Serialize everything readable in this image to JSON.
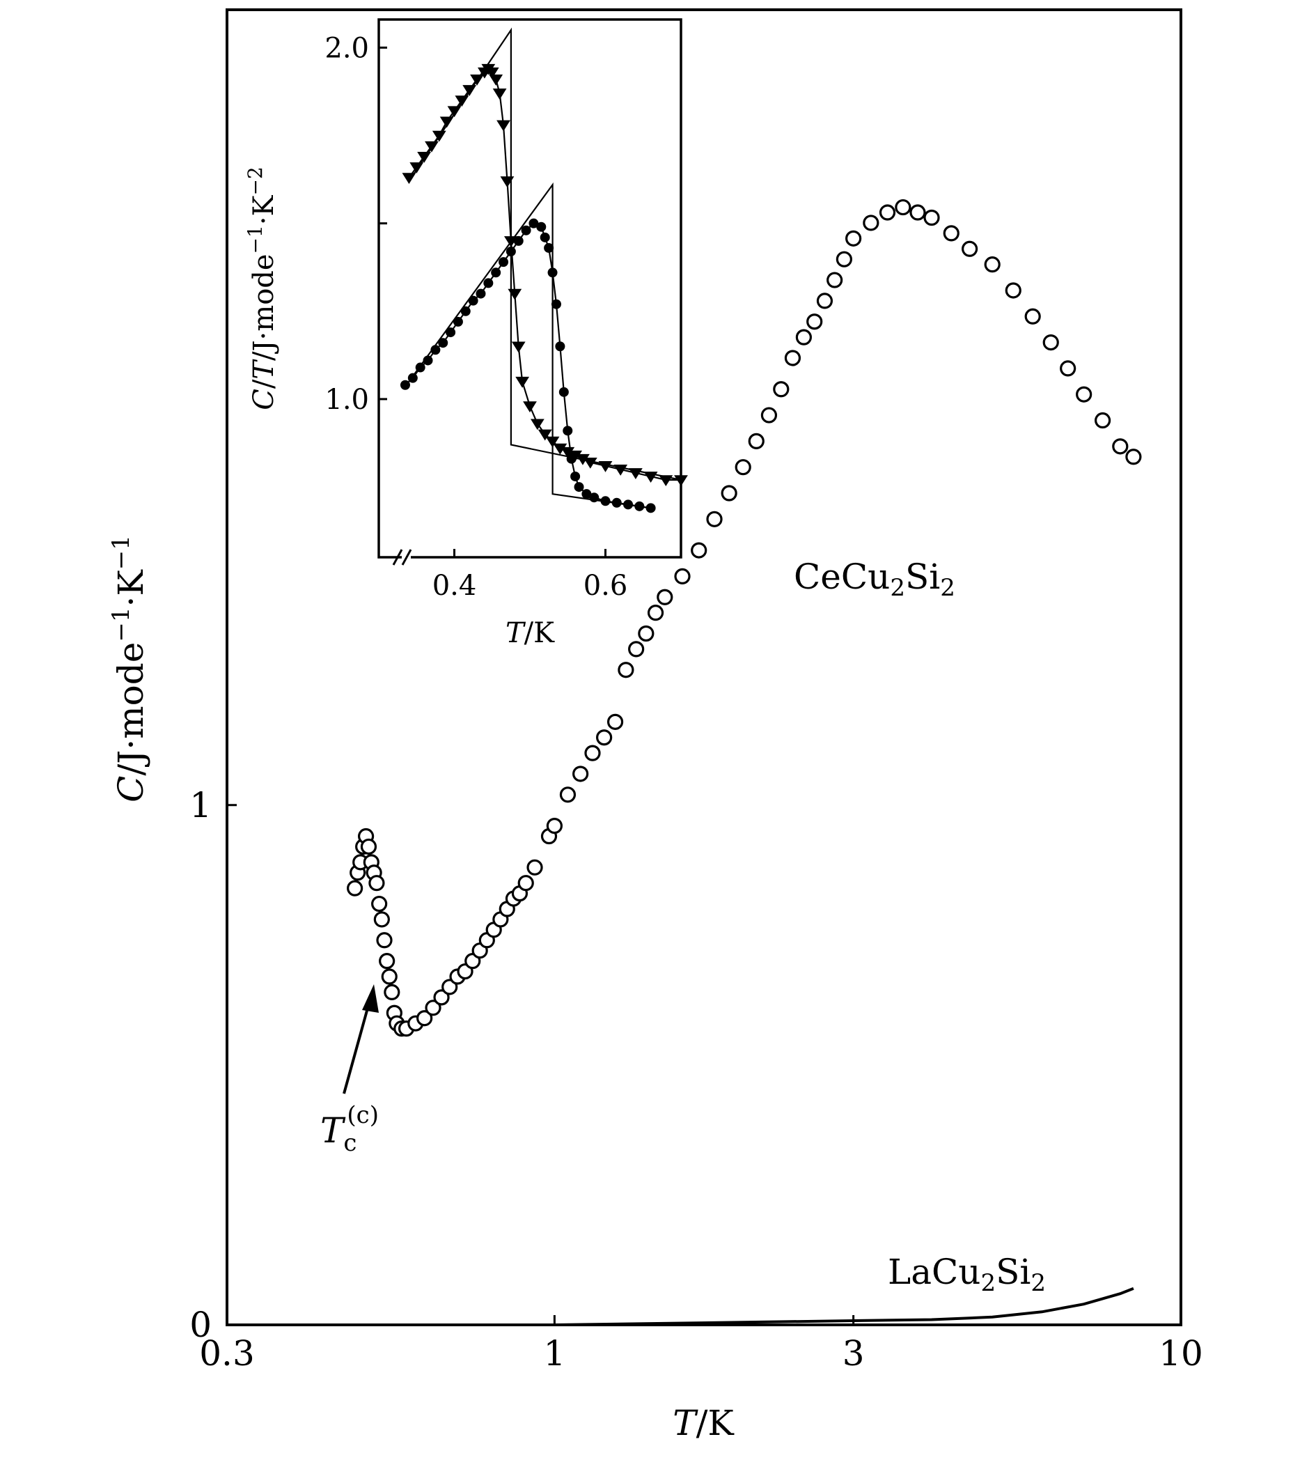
{
  "chart_data": [
    {
      "type": "scatter",
      "xscale": "log",
      "xlim": [
        0.3,
        10
      ],
      "ylim": [
        0,
        2.53
      ],
      "xlabel": {
        "italic": "T",
        "rest": "/K"
      },
      "ylabel": {
        "italic": "C",
        "rest": "/J·mode",
        "sup1": "−1",
        "mid": "·K",
        "sup2": "−1"
      },
      "xticks": [
        {
          "value": 0.3,
          "label": "0.3"
        },
        {
          "value": 1,
          "label": "1"
        },
        {
          "value": 3,
          "label": "3"
        },
        {
          "value": 10,
          "label": "10"
        }
      ],
      "yticks": [
        {
          "value": 0,
          "label": "0"
        },
        {
          "value": 1,
          "label": "1"
        }
      ],
      "series": [
        {
          "name": "CeCu2Si2",
          "label_parts": [
            "CeCu",
            "2",
            "Si",
            "2"
          ],
          "marker": "open-circle",
          "points": [
            [
              0.48,
              0.84
            ],
            [
              0.485,
              0.87
            ],
            [
              0.49,
              0.89
            ],
            [
              0.495,
              0.92
            ],
            [
              0.5,
              0.94
            ],
            [
              0.505,
              0.92
            ],
            [
              0.51,
              0.89
            ],
            [
              0.515,
              0.87
            ],
            [
              0.52,
              0.85
            ],
            [
              0.525,
              0.81
            ],
            [
              0.53,
              0.78
            ],
            [
              0.535,
              0.74
            ],
            [
              0.54,
              0.7
            ],
            [
              0.545,
              0.67
            ],
            [
              0.55,
              0.64
            ],
            [
              0.555,
              0.6
            ],
            [
              0.56,
              0.58
            ],
            [
              0.57,
              0.57
            ],
            [
              0.58,
              0.57
            ],
            [
              0.6,
              0.58
            ],
            [
              0.62,
              0.59
            ],
            [
              0.64,
              0.61
            ],
            [
              0.66,
              0.63
            ],
            [
              0.68,
              0.65
            ],
            [
              0.7,
              0.67
            ],
            [
              0.72,
              0.68
            ],
            [
              0.74,
              0.7
            ],
            [
              0.76,
              0.72
            ],
            [
              0.78,
              0.74
            ],
            [
              0.8,
              0.76
            ],
            [
              0.82,
              0.78
            ],
            [
              0.84,
              0.8
            ],
            [
              0.86,
              0.82
            ],
            [
              0.88,
              0.83
            ],
            [
              0.9,
              0.85
            ],
            [
              0.93,
              0.88
            ],
            [
              0.98,
              0.94
            ],
            [
              1.0,
              0.96
            ],
            [
              1.05,
              1.02
            ],
            [
              1.1,
              1.06
            ],
            [
              1.15,
              1.1
            ],
            [
              1.2,
              1.13
            ],
            [
              1.25,
              1.16
            ],
            [
              1.3,
              1.26
            ],
            [
              1.35,
              1.3
            ],
            [
              1.4,
              1.33
            ],
            [
              1.45,
              1.37
            ],
            [
              1.5,
              1.4
            ],
            [
              1.6,
              1.44
            ],
            [
              1.7,
              1.49
            ],
            [
              1.8,
              1.55
            ],
            [
              1.9,
              1.6
            ],
            [
              2.0,
              1.65
            ],
            [
              2.1,
              1.7
            ],
            [
              2.2,
              1.75
            ],
            [
              2.3,
              1.8
            ],
            [
              2.4,
              1.86
            ],
            [
              2.5,
              1.9
            ],
            [
              2.6,
              1.93
            ],
            [
              2.7,
              1.97
            ],
            [
              2.8,
              2.01
            ],
            [
              2.9,
              2.05
            ],
            [
              3.0,
              2.09
            ],
            [
              3.2,
              2.12
            ],
            [
              3.4,
              2.14
            ],
            [
              3.6,
              2.15
            ],
            [
              3.8,
              2.14
            ],
            [
              4.0,
              2.13
            ],
            [
              4.3,
              2.1
            ],
            [
              4.6,
              2.07
            ],
            [
              5.0,
              2.04
            ],
            [
              5.4,
              1.99
            ],
            [
              5.8,
              1.94
            ],
            [
              6.2,
              1.89
            ],
            [
              6.6,
              1.84
            ],
            [
              7.0,
              1.79
            ],
            [
              7.5,
              1.74
            ],
            [
              8.0,
              1.69
            ],
            [
              8.4,
              1.67
            ]
          ]
        },
        {
          "name": "LaCu2Si2",
          "label_parts": [
            "LaCu",
            "2",
            "Si",
            "2"
          ],
          "marker": "line",
          "points": [
            [
              0.3,
              0.0
            ],
            [
              0.5,
              0.0
            ],
            [
              1.0,
              0.0
            ],
            [
              2.0,
              0.005
            ],
            [
              3.0,
              0.008
            ],
            [
              4.0,
              0.01
            ],
            [
              5.0,
              0.015
            ],
            [
              6.0,
              0.025
            ],
            [
              7.0,
              0.04
            ],
            [
              8.0,
              0.06
            ],
            [
              8.4,
              0.07
            ]
          ]
        }
      ],
      "annotation": {
        "base": "T",
        "sub": "c",
        "sup": "(c)",
        "points_to": [
          0.535,
          0.64
        ]
      }
    },
    {
      "type": "line",
      "inset": true,
      "xlim": [
        0.3,
        0.7
      ],
      "ylim": [
        0.55,
        2.08
      ],
      "x_axis_break": true,
      "xlabel": {
        "italic": "T",
        "rest": "/K"
      },
      "ylabel": {
        "italic1": "C",
        "sep": "/",
        "italic2": "T",
        "rest": "/J·mode",
        "sup1": "−1",
        "mid": "·K",
        "sup2": "−2"
      },
      "xticks": [
        {
          "value": 0.4,
          "label": "0.4"
        },
        {
          "value": 0.6,
          "label": "0.6"
        }
      ],
      "yticks": [
        {
          "value": 1.0,
          "label": "1.0"
        },
        {
          "value": 1.5,
          "label": ""
        },
        {
          "value": 2.0,
          "label": "2.0"
        }
      ],
      "series": [
        {
          "marker": "filled-triangle-down",
          "points": [
            [
              0.34,
              1.63
            ],
            [
              0.35,
              1.66
            ],
            [
              0.36,
              1.69
            ],
            [
              0.37,
              1.72
            ],
            [
              0.38,
              1.75
            ],
            [
              0.39,
              1.79
            ],
            [
              0.4,
              1.82
            ],
            [
              0.41,
              1.85
            ],
            [
              0.42,
              1.88
            ],
            [
              0.43,
              1.91
            ],
            [
              0.44,
              1.93
            ],
            [
              0.445,
              1.94
            ],
            [
              0.45,
              1.93
            ],
            [
              0.455,
              1.91
            ],
            [
              0.46,
              1.87
            ],
            [
              0.465,
              1.78
            ],
            [
              0.47,
              1.62
            ],
            [
              0.475,
              1.45
            ],
            [
              0.48,
              1.3
            ],
            [
              0.485,
              1.15
            ],
            [
              0.49,
              1.05
            ],
            [
              0.5,
              0.98
            ],
            [
              0.51,
              0.93
            ],
            [
              0.52,
              0.9
            ],
            [
              0.53,
              0.88
            ],
            [
              0.54,
              0.86
            ],
            [
              0.55,
              0.85
            ],
            [
              0.56,
              0.84
            ],
            [
              0.57,
              0.83
            ],
            [
              0.58,
              0.82
            ],
            [
              0.6,
              0.81
            ],
            [
              0.62,
              0.8
            ],
            [
              0.64,
              0.79
            ],
            [
              0.66,
              0.78
            ],
            [
              0.68,
              0.77
            ],
            [
              0.7,
              0.77
            ]
          ]
        },
        {
          "marker": "filled-circle",
          "points": [
            [
              0.335,
              1.04
            ],
            [
              0.345,
              1.06
            ],
            [
              0.355,
              1.09
            ],
            [
              0.365,
              1.11
            ],
            [
              0.375,
              1.14
            ],
            [
              0.385,
              1.16
            ],
            [
              0.395,
              1.19
            ],
            [
              0.405,
              1.22
            ],
            [
              0.415,
              1.25
            ],
            [
              0.425,
              1.28
            ],
            [
              0.435,
              1.3
            ],
            [
              0.445,
              1.33
            ],
            [
              0.455,
              1.36
            ],
            [
              0.465,
              1.39
            ],
            [
              0.475,
              1.42
            ],
            [
              0.485,
              1.45
            ],
            [
              0.495,
              1.48
            ],
            [
              0.505,
              1.5
            ],
            [
              0.515,
              1.49
            ],
            [
              0.52,
              1.46
            ],
            [
              0.525,
              1.43
            ],
            [
              0.53,
              1.36
            ],
            [
              0.535,
              1.27
            ],
            [
              0.54,
              1.15
            ],
            [
              0.545,
              1.02
            ],
            [
              0.55,
              0.91
            ],
            [
              0.555,
              0.83
            ],
            [
              0.56,
              0.78
            ],
            [
              0.565,
              0.75
            ],
            [
              0.575,
              0.73
            ],
            [
              0.585,
              0.72
            ],
            [
              0.6,
              0.71
            ],
            [
              0.615,
              0.705
            ],
            [
              0.63,
              0.7
            ],
            [
              0.645,
              0.695
            ],
            [
              0.66,
              0.69
            ]
          ]
        },
        {
          "marker": "none",
          "points": [
            [
              0.34,
              1.62
            ],
            [
              0.475,
              2.05
            ],
            [
              0.475,
              0.87
            ],
            [
              0.7,
              0.77
            ]
          ]
        },
        {
          "marker": "none",
          "points": [
            [
              0.34,
              1.05
            ],
            [
              0.53,
              1.61
            ],
            [
              0.53,
              0.73
            ],
            [
              0.66,
              0.69
            ]
          ]
        }
      ]
    }
  ]
}
